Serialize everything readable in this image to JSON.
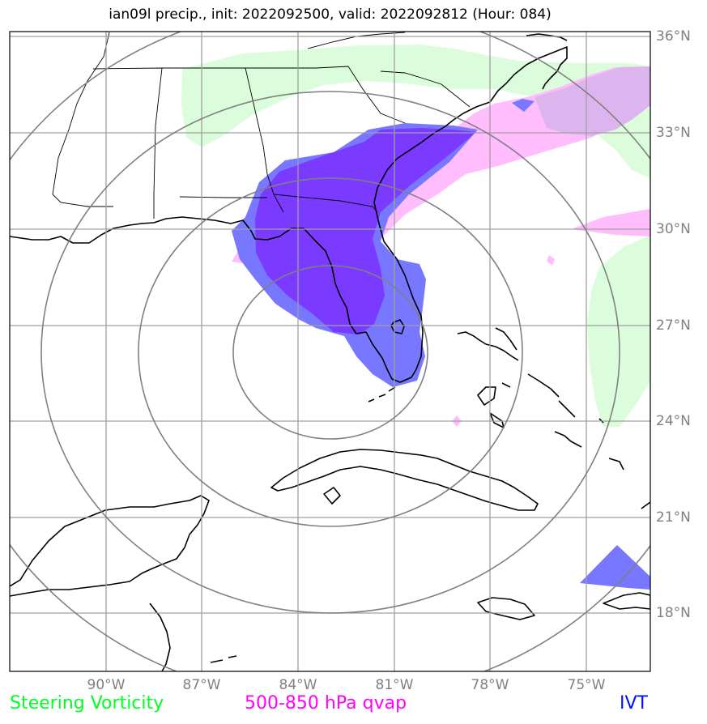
{
  "title": "ian09l precip., init: 2022092500, valid: 2022092812 (Hour: 084)",
  "lat_labels": [
    "36°N",
    "33°N",
    "30°N",
    "27°N",
    "24°N",
    "21°N",
    "18°N"
  ],
  "lon_labels": [
    "90°W",
    "87°W",
    "84°W",
    "81°W",
    "78°W",
    "75°W"
  ],
  "legend": {
    "vorticity": "Steering Vorticity",
    "qvap": "500-850 hPa qvap",
    "ivt": "IVT"
  },
  "colors": {
    "vorticity": "#00ff22",
    "vorticity_fill": "#dcfddc",
    "qvap": "#ff00ff",
    "qvap_fill": "#ffbdfd",
    "ivt": "#0010ff",
    "ivt_fill": "#7777ff",
    "overlap_fill": "#7a3aff",
    "grid": "#a0a0a0",
    "range_rings": "#808080",
    "coastline": "#000000"
  }
}
